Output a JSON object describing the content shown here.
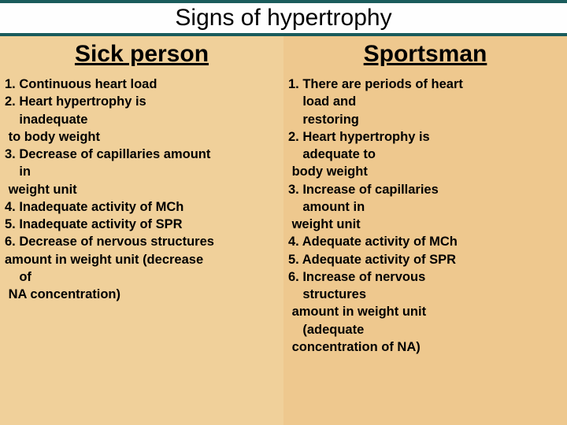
{
  "slide": {
    "title": "Signs of hypertrophy",
    "title_bg": "#1a5c5c",
    "title_fontsize": 30,
    "columns": [
      {
        "header": "Sick person",
        "header_fontsize": 30,
        "bg_color": "#f0d09a",
        "body_fontsize": 16.5,
        "lines": [
          "1. Continuous heart load",
          "2. Heart hypertrophy is",
          "    inadequate",
          " to body weight",
          "3. Decrease of capillaries amount",
          "    in",
          " weight unit",
          "4. Inadequate activity of MCh",
          "5. Inadequate activity of SPR",
          "6. Decrease of nervous structures",
          "amount in weight unit (decrease",
          "    of",
          " NA concentration)"
        ]
      },
      {
        "header": "Sportsman",
        "header_fontsize": 30,
        "bg_color": "#eec88e",
        "body_fontsize": 16.5,
        "lines": [
          "1. There are periods of heart",
          "    load and",
          "    restoring",
          "2. Heart hypertrophy is",
          "    adequate to",
          " body weight",
          "3. Increase of capillaries",
          "    amount in",
          " weight unit",
          "4. Adequate activity of MCh",
          "5. Adequate activity of SPR",
          "6. Increase of nervous",
          "    structures",
          " amount in weight unit",
          "    (adequate",
          " concentration of NA)"
        ]
      }
    ]
  }
}
